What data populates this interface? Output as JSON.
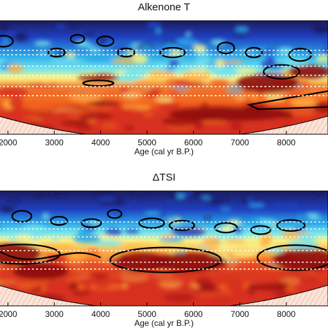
{
  "chart_data": [
    {
      "type": "heatmap",
      "title": "Alkenone T",
      "xlabel": "Age (cal yr B.P.)",
      "xticks": [
        2000,
        3000,
        4000,
        5000,
        6000,
        7000,
        8000
      ],
      "xlim": [
        1800,
        8900
      ],
      "colormap": [
        "#1b1b5e",
        "#1f3fbf",
        "#2aa6e8",
        "#6fe3ef",
        "#f7f28a",
        "#ffb347",
        "#f46a1f",
        "#d7301f",
        "#8c0b0b"
      ],
      "grid": false
    },
    {
      "type": "heatmap",
      "title": "ΔTSI",
      "xlabel": "Age (cal yr B.P.)",
      "xticks": [
        2000,
        3000,
        4000,
        5000,
        6000,
        7000,
        8000
      ],
      "xlim": [
        1800,
        8900
      ],
      "colormap": [
        "#1b1b5e",
        "#1f3fbf",
        "#2aa6e8",
        "#6fe3ef",
        "#f7f28a",
        "#ffb347",
        "#f46a1f",
        "#d7301f",
        "#8c0b0b"
      ],
      "grid": false
    }
  ]
}
